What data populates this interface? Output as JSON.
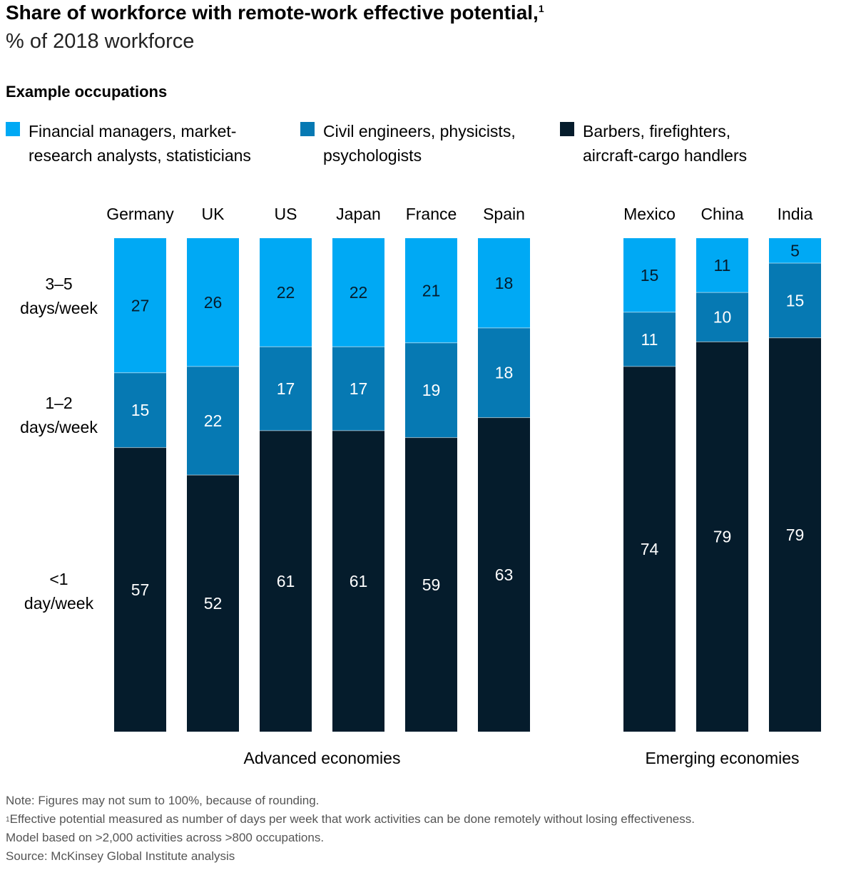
{
  "title": "Share of workforce with remote-work effective potential,",
  "title_footnote_mark": "1",
  "subtitle": "% of 2018 workforce",
  "legend": {
    "heading": "Example occupations",
    "items": [
      {
        "label": "Financial managers, market-\nresearch analysts, statisticians",
        "color": "#00A9F4"
      },
      {
        "label": "Civil engineers, physicists,\npsychologists",
        "color": "#0679B3"
      },
      {
        "label": "Barbers, firefighters,\naircraft-cargo handlers",
        "color": "#051C2C"
      }
    ]
  },
  "row_labels": [
    "3–5\ndays/week",
    "1–2\ndays/week",
    "<1\nday/week"
  ],
  "chart_data": {
    "type": "bar",
    "stacked": true,
    "title": "Share of workforce with remote-work effective potential",
    "ylabel": "% of 2018 workforce",
    "ylim": [
      0,
      100
    ],
    "categories": [
      "Germany",
      "UK",
      "US",
      "Japan",
      "France",
      "Spain",
      "Mexico",
      "China",
      "India"
    ],
    "groups": [
      {
        "name": "Advanced economies",
        "categories": [
          "Germany",
          "UK",
          "US",
          "Japan",
          "France",
          "Spain"
        ]
      },
      {
        "name": "Emerging economies",
        "categories": [
          "Mexico",
          "China",
          "India"
        ]
      }
    ],
    "series": [
      {
        "name": "3–5 days/week",
        "color": "#00A9F4",
        "label_color": "#051C2C",
        "values": [
          27,
          26,
          22,
          22,
          21,
          18,
          15,
          11,
          5
        ]
      },
      {
        "name": "1–2 days/week",
        "color": "#0679B3",
        "label_color": "#FFFFFF",
        "values": [
          15,
          22,
          17,
          17,
          19,
          18,
          11,
          10,
          15
        ]
      },
      {
        "name": "<1 day/week",
        "color": "#051C2C",
        "label_color": "#FFFFFF",
        "values": [
          57,
          52,
          61,
          61,
          59,
          63,
          74,
          79,
          79
        ]
      }
    ]
  },
  "notes": {
    "note": "Note: Figures may not sum to 100%, because of rounding.",
    "footnote_mark": "1",
    "footnote_1": "Effective potential measured as number of days per week that work activities can be done remotely without losing effectiveness.",
    "footnote_2": "Model based on >2,000 activities across >800 occupations.",
    "source": "Source: McKinsey Global Institute analysis"
  }
}
